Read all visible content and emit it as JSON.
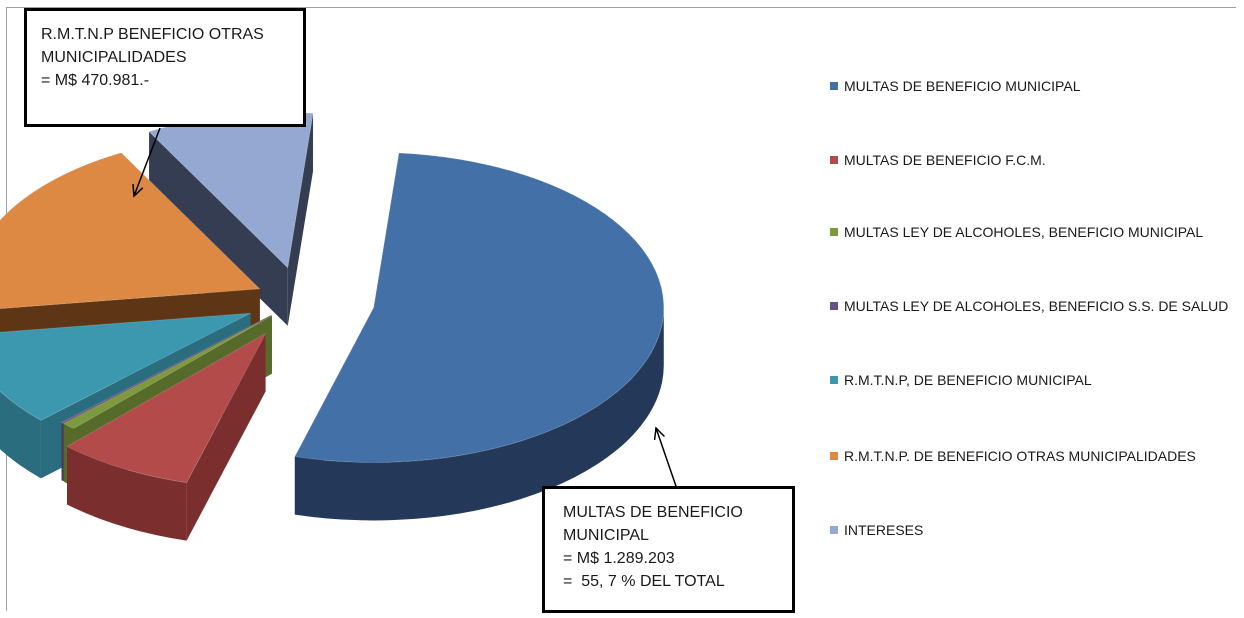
{
  "chart_data": {
    "type": "pie",
    "style": "3d-exploded",
    "slices": [
      {
        "label": "MULTAS DE BENEFICIO MUNICIPAL",
        "value": 55.7,
        "color": "#4470a8",
        "side_color": "#24395a"
      },
      {
        "label": "MULTAS DE BENEFICIO F.C.M.",
        "value": 8.0,
        "color": "#b24b49",
        "side_color": "#7a2e2d"
      },
      {
        "label": "MULTAS LEY DE ALCOHOLES, BENEFICIO MUNICIPAL",
        "value": 0.8,
        "color": "#7e9a3e",
        "side_color": "#566a2a"
      },
      {
        "label": "MULTAS LEY DE ALCOHOLES, BENEFICIO S.S. DE SALUD",
        "value": 0.1,
        "color": "#6b4f8c",
        "side_color": "#4a365f"
      },
      {
        "label": "R.M.T.N.P, DE BENEFICIO MUNICIPAL",
        "value": 10.4,
        "color": "#3c98ae",
        "side_color": "#2a6d7e"
      },
      {
        "label": "R.M.T.N.P. DE BENEFICIO OTRAS MUNICIPALIDADES",
        "value": 20.3,
        "color": "#dd8843",
        "side_color": "#5e3616"
      },
      {
        "label": "INTERESES",
        "value": 9.8,
        "color": "#94a8d1",
        "side_color": "#343d52"
      }
    ],
    "legend_position": "right",
    "annotations": [
      {
        "lines": [
          "R.M.T.N.P BENEFICIO OTRAS",
          "MUNICIPALIDADES",
          "= M$ 470.981.-"
        ]
      },
      {
        "lines": [
          "MULTAS DE BENEFICIO",
          "MUNICIPAL",
          "= M$ 1.289.203",
          "=  55, 7 % DEL TOTAL"
        ]
      }
    ]
  },
  "legend": {
    "items": [
      {
        "label": "MULTAS DE BENEFICIO MUNICIPAL",
        "color": "#4470a8"
      },
      {
        "label": "MULTAS DE BENEFICIO F.C.M.",
        "color": "#b24b49"
      },
      {
        "label": "MULTAS LEY DE ALCOHOLES, BENEFICIO MUNICIPAL",
        "color": "#7e9a3e"
      },
      {
        "label": "MULTAS LEY DE ALCOHOLES, BENEFICIO S.S. DE SALUD",
        "color": "#6b4f8c"
      },
      {
        "label": "R.M.T.N.P, DE BENEFICIO MUNICIPAL",
        "color": "#3c98ae"
      },
      {
        "label": "R.M.T.N.P. DE BENEFICIO OTRAS MUNICIPALIDADES",
        "color": "#dd8843"
      },
      {
        "label": "INTERESES",
        "color": "#94a8d1"
      }
    ]
  },
  "callouts": {
    "top": {
      "line1": "R.M.T.N.P BENEFICIO OTRAS",
      "line2": "MUNICIPALIDADES",
      "line3": "= M$ 470.981.-"
    },
    "bottom": {
      "line1": "MULTAS DE BENEFICIO",
      "line2": "MUNICIPAL",
      "line3": "= M$ 1.289.203",
      "line4": "=  55, 7 % DEL TOTAL"
    }
  }
}
